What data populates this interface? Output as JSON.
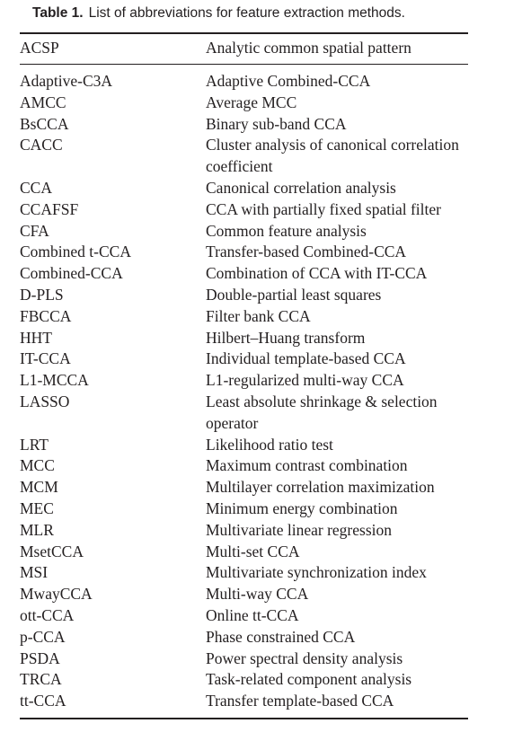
{
  "caption": {
    "label": "Table 1.",
    "text": "List of abbreviations for feature extraction methods."
  },
  "header": {
    "abbreviation": "ACSP",
    "definition": "Analytic common spatial pattern"
  },
  "rows": [
    {
      "abbr": "Adaptive-C3A",
      "def": "Adaptive Combined-CCA",
      "lines": 1
    },
    {
      "abbr": "AMCC",
      "def": "Average MCC",
      "lines": 1
    },
    {
      "abbr": "BsCCA",
      "def": "Binary sub-band CCA",
      "lines": 1
    },
    {
      "abbr": "CACC",
      "def": "Cluster analysis of canonical correlation coefficient",
      "lines": 2
    },
    {
      "abbr": "CCA",
      "def": "Canonical correlation analysis",
      "lines": 1
    },
    {
      "abbr": "CCAFSF",
      "def": "CCA with partially fixed spatial filter",
      "lines": 1
    },
    {
      "abbr": "CFA",
      "def": "Common feature analysis",
      "lines": 1
    },
    {
      "abbr": "Combined t-CCA",
      "def": "Transfer-based Combined-CCA",
      "lines": 1
    },
    {
      "abbr": "Combined-CCA",
      "def": "Combination of CCA with IT-CCA",
      "lines": 1
    },
    {
      "abbr": "D-PLS",
      "def": "Double-partial least squares",
      "lines": 1
    },
    {
      "abbr": "FBCCA",
      "def": "Filter bank CCA",
      "lines": 1
    },
    {
      "abbr": "HHT",
      "def": "Hilbert–Huang transform",
      "lines": 1
    },
    {
      "abbr": "IT-CCA",
      "def": "Individual template-based CCA",
      "lines": 1
    },
    {
      "abbr": "L1-MCCA",
      "def": "L1-regularized multi-way CCA",
      "lines": 1
    },
    {
      "abbr": "LASSO",
      "def": "Least absolute shrinkage & selection operator",
      "lines": 2
    },
    {
      "abbr": "LRT",
      "def": "Likelihood ratio test",
      "lines": 1
    },
    {
      "abbr": "MCC",
      "def": "Maximum contrast combination",
      "lines": 1
    },
    {
      "abbr": "MCM",
      "def": "Multilayer correlation maximization",
      "lines": 1
    },
    {
      "abbr": "MEC",
      "def": "Minimum energy combination",
      "lines": 1
    },
    {
      "abbr": "MLR",
      "def": "Multivariate linear regression",
      "lines": 1
    },
    {
      "abbr": "MsetCCA",
      "def": "Multi-set CCA",
      "lines": 1
    },
    {
      "abbr": "MSI",
      "def": "Multivariate synchronization index",
      "lines": 1
    },
    {
      "abbr": "MwayCCA",
      "def": "Multi-way CCA",
      "lines": 1
    },
    {
      "abbr": "ott-CCA",
      "def": "Online tt-CCA",
      "lines": 1
    },
    {
      "abbr": "p-CCA",
      "def": "Phase constrained CCA",
      "lines": 1
    },
    {
      "abbr": "PSDA",
      "def": "Power spectral density analysis",
      "lines": 1
    },
    {
      "abbr": "TRCA",
      "def": "Task-related component analysis",
      "lines": 1
    },
    {
      "abbr": "tt-CCA",
      "def": "Transfer template-based CCA",
      "lines": 1
    }
  ]
}
